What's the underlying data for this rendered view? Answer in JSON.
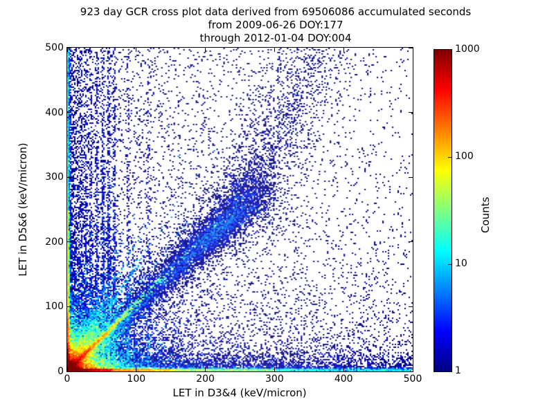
{
  "title": {
    "line1": "923 day GCR cross plot data derived from 69506086 accumulated seconds",
    "line2": "from 2009-06-26 DOY:177",
    "line3": "through 2012-01-04 DOY:004"
  },
  "colors": {
    "background": "#ffffff",
    "frame": "#000000",
    "text": "#000000",
    "single_count_dot": "#000080",
    "jet_stops": [
      "#000080 0%",
      "#0000ff 12.5%",
      "#00ffff 37.5%",
      "#ffff00 62.5%",
      "#ff0000 87.5%",
      "#800000 100%"
    ]
  },
  "chart_data": {
    "type": "heatmap",
    "title": "923 day GCR cross plot data derived from 69506086 accumulated seconds from 2009-06-26 DOY:177 through 2012-01-04 DOY:004",
    "xlabel": "LET in D3&4 (keV/micron)",
    "ylabel": "LET in D5&6 (keV/micron)",
    "xlim": [
      0,
      500
    ],
    "ylim": [
      0,
      500
    ],
    "xticks": [
      0,
      100,
      200,
      300,
      400,
      500
    ],
    "yticks": [
      0,
      100,
      200,
      300,
      400,
      500
    ],
    "grid": false,
    "legend": "none",
    "colorbar": {
      "label": "Counts",
      "scale": "log",
      "min": 1,
      "max": 1000,
      "ticks": [
        1,
        10,
        100,
        1000
      ],
      "colormap": "jet"
    },
    "features": [
      "very dense hot spot (~1000 counts, dark red) at the origin below ~15 keV/micron in both detectors",
      "bright red ridge along y ~ x out to about (60,60)",
      "fan of fainter green/cyan rays above the diagonal with slopes ~1.3 to 2.6 reaching radius ~120",
      "broad dark-blue GCR correlation band along the diagonal with a denser blob near (230,225); the band bends steeper above y~250 and meets the top edge near x~355",
      "bright horizontal band hugging y~0: red to x~65, yellow-green to ~150, cyan to ~300, fading blue toward 500",
      "bright vertical band hugging x~0: red below y~35, orange-yellow to ~90, green-cyan to ~250, blue to 500",
      "faint vertical streaks at x ~ 20, 27, 34, 43, 52, 60, 68, 88, 118 keV/micron",
      "sparse single-count (dark blue) background scatter over the whole plane, denser near both axes"
    ],
    "generator": {
      "seed": 1337,
      "bins": [
        250,
        234
      ],
      "components": [
        {
          "kind": "uniform",
          "n": 1300,
          "w": 1
        },
        {
          "kind": "marginX",
          "n": 2400,
          "scale": 140,
          "w": 1
        },
        {
          "kind": "marginY",
          "n": 2400,
          "scale": 140,
          "w": 1
        },
        {
          "kind": "band",
          "n": 9500,
          "bulkScale": 115,
          "blobMu": 226,
          "blobSigma": 36,
          "blobFrac": 0.3,
          "uniFrac": 0.14,
          "bendY": 250,
          "bendSlope": 0.42,
          "sigma0": 5,
          "sigmaGrow": 0.055,
          "w": 1
        },
        {
          "kind": "band",
          "n": 2600,
          "bulkScale": 130,
          "blobMu": 226,
          "blobSigma": 50,
          "blobFrac": 0.25,
          "uniFrac": 0.2,
          "bendY": 250,
          "bendSlope": 0.42,
          "sigma0": 14,
          "sigmaGrow": 0.12,
          "w": 1
        },
        {
          "kind": "wedge",
          "n": 5200,
          "rscale": 34,
          "w": 3
        },
        {
          "kind": "ray",
          "n": 2000,
          "slope": 1.05,
          "rscale": 50,
          "jitter": 2.0,
          "w": 16
        },
        {
          "kind": "ray",
          "n": 800,
          "slope": 1.32,
          "rscale": 48,
          "jitter": 2.4,
          "w": 5
        },
        {
          "kind": "ray",
          "n": 850,
          "slope": 1.62,
          "rscale": 52,
          "jitter": 2.6,
          "w": 6
        },
        {
          "kind": "ray",
          "n": 750,
          "slope": 2.0,
          "rscale": 50,
          "jitter": 2.6,
          "w": 5
        },
        {
          "kind": "ray",
          "n": 550,
          "slope": 2.55,
          "rscale": 46,
          "jitter": 2.6,
          "w": 4
        },
        {
          "kind": "ray",
          "n": 450,
          "slope": 0.78,
          "rscale": 30,
          "jitter": 2.0,
          "w": 5
        },
        {
          "kind": "blob",
          "n": 2600,
          "sx": 9,
          "sy": 8.5,
          "w": 40
        },
        {
          "kind": "blob",
          "n": 3600,
          "sx": 24,
          "sy": 22,
          "w": 7
        },
        {
          "kind": "blob",
          "n": 3200,
          "sx": 55,
          "sy": 50,
          "w": 2
        },
        {
          "kind": "hline",
          "n": 5400,
          "xScale": 120,
          "uniFrac": 0.38,
          "y0": 1.0,
          "ySigma": 1.7,
          "wsteps": [
            [
              65,
              22
            ],
            [
              150,
              8
            ],
            [
              300,
              4
            ],
            [
              501,
              2.2
            ]
          ]
        },
        {
          "kind": "hfuzz",
          "n": 4200,
          "xScale": 170,
          "uniFrac": 0.45,
          "yScale": 13,
          "w": 1
        },
        {
          "kind": "vline",
          "n": 3400,
          "yScale": 135,
          "uniFrac": 0.42,
          "x0": 0.8,
          "xSigma": 1.4,
          "wsteps": [
            [
              35,
              22
            ],
            [
              90,
              10
            ],
            [
              250,
              5
            ],
            [
              501,
              2.2
            ]
          ]
        },
        {
          "kind": "vfuzz",
          "n": 2400,
          "yScale": 170,
          "uniFrac": 0.45,
          "xScale": 11,
          "w": 1
        },
        {
          "kind": "streaks",
          "xs": [
            20,
            27,
            34,
            43,
            52,
            60,
            68,
            88,
            118
          ],
          "rel": [
            0.5,
            0.65,
            0.75,
            0.85,
            1.0,
            1.1,
            0.9,
            0.5,
            0.35
          ],
          "nper": 540,
          "xSigma": 1.3,
          "yScale": 130,
          "uniFrac": 0.35,
          "wLow": 3,
          "wHigh": 1.4,
          "lowY": 60
        }
      ]
    }
  }
}
